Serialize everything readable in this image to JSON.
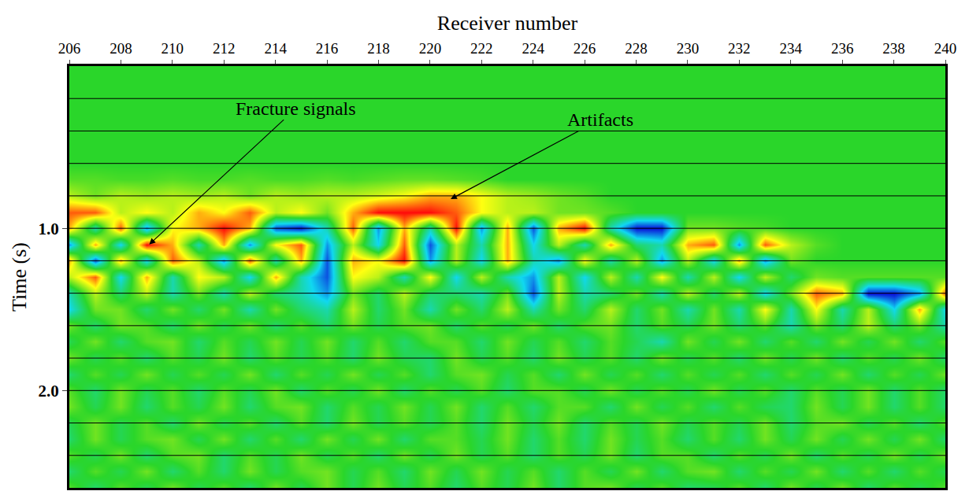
{
  "chart_data": {
    "type": "heatmap",
    "x_label": "Receiver number",
    "y_label": "Time (s)",
    "xlim": [
      206,
      240
    ],
    "xticks": [
      206,
      208,
      210,
      212,
      214,
      216,
      218,
      220,
      222,
      224,
      226,
      228,
      230,
      232,
      234,
      236,
      238,
      240
    ],
    "ylim": [
      0,
      2.6
    ],
    "yticks": [
      {
        "value": 1.0,
        "label": "1.0"
      },
      {
        "value": 2.0,
        "label": "2.0"
      }
    ],
    "grid": true,
    "y_grid": [
      0.2,
      0.4,
      0.6,
      0.8,
      1.0,
      1.2,
      1.4,
      1.6,
      1.8,
      2.0,
      2.2,
      2.4
    ],
    "zlim": [
      -3,
      3
    ],
    "annotations": [
      {
        "text": "Fracture signals",
        "x": 209.1,
        "y": 1.1,
        "ax": 214.8,
        "ay": 0.26
      },
      {
        "text": "Artifacts",
        "x": 220.8,
        "y": 0.82,
        "ax": 226.6,
        "ay": 0.33
      }
    ],
    "x": [
      206,
      207,
      208,
      209,
      210,
      211,
      212,
      213,
      214,
      215,
      216,
      217,
      218,
      219,
      220,
      221,
      222,
      223,
      224,
      225,
      226,
      227,
      228,
      229,
      230,
      231,
      232,
      233,
      234,
      235,
      236,
      237,
      238,
      239,
      240
    ],
    "y": [
      0,
      0.1,
      0.2,
      0.3,
      0.4,
      0.5,
      0.6,
      0.7,
      0.8,
      0.9,
      1.0,
      1.1,
      1.2,
      1.3,
      1.4,
      1.5,
      1.6,
      1.7,
      1.8,
      1.9,
      2.0,
      2.1,
      2.2,
      2.3,
      2.4,
      2.5,
      2.6
    ],
    "cells": [
      [
        0,
        0,
        0,
        0,
        0,
        0,
        0,
        0,
        0,
        0,
        0,
        0,
        0,
        0,
        0,
        0,
        0,
        0,
        0,
        0,
        0,
        0,
        0,
        0,
        0,
        0,
        0,
        0,
        0,
        0,
        0,
        0,
        0,
        0,
        0
      ],
      [
        0,
        0,
        0,
        0,
        0,
        0,
        0,
        0,
        0,
        0,
        0,
        0,
        0,
        0,
        0,
        0,
        0,
        0,
        0,
        0,
        0,
        0,
        0,
        0,
        0,
        0,
        0,
        0,
        0,
        0,
        0,
        0,
        0,
        0,
        0
      ],
      [
        0,
        0,
        0,
        0,
        0,
        0,
        0,
        0,
        0,
        0,
        0,
        0,
        0,
        0,
        0,
        0,
        0,
        0,
        0,
        0,
        0,
        0,
        0,
        0,
        0,
        0,
        0,
        0,
        0,
        0,
        0,
        0,
        0,
        0,
        0
      ],
      [
        0,
        0,
        0,
        0,
        0,
        0,
        0,
        0,
        0,
        0,
        0,
        0,
        0,
        0,
        0,
        0,
        0,
        0,
        0,
        0,
        0,
        0,
        0,
        0,
        0,
        0,
        0,
        0,
        0,
        0,
        0,
        0,
        0,
        0,
        0
      ],
      [
        0,
        0,
        0,
        0,
        0,
        0,
        0,
        0,
        0,
        0,
        0,
        0,
        0,
        0,
        0,
        0,
        0,
        0,
        0,
        0,
        0,
        0,
        0,
        0,
        0,
        0,
        0,
        0,
        0,
        0,
        0,
        0,
        0,
        0,
        0
      ],
      [
        0,
        0,
        0,
        0,
        0,
        0,
        0,
        0,
        0,
        0,
        0,
        0,
        0,
        0,
        0,
        0,
        0,
        0,
        0,
        0,
        0,
        0,
        0,
        0,
        0,
        0,
        0,
        0,
        0,
        0,
        0,
        0,
        0,
        0,
        0
      ],
      [
        0,
        0,
        0,
        0,
        0,
        0,
        0,
        0,
        0,
        0,
        0,
        0,
        0,
        0,
        0,
        0,
        0,
        0,
        0,
        0,
        0,
        0,
        0,
        0,
        0,
        0,
        0,
        0,
        0,
        0,
        0,
        0,
        0,
        0,
        0
      ],
      [
        0.3,
        0.3,
        0.2,
        0.2,
        0.3,
        0.2,
        0.2,
        0.3,
        0.2,
        0.2,
        0.3,
        0.2,
        0.3,
        0.4,
        0.4,
        0.3,
        0.2,
        0,
        0,
        0,
        0,
        0,
        0,
        0,
        0,
        0,
        0,
        0,
        0,
        0,
        0,
        0,
        0,
        0,
        0
      ],
      [
        1,
        0.5,
        1,
        0.8,
        1,
        0.8,
        1,
        0.5,
        1,
        0.8,
        1,
        1,
        1.2,
        1.5,
        2,
        2,
        1.5,
        1,
        0.8,
        0.5,
        0.3,
        0,
        0,
        0,
        0,
        0,
        0,
        0,
        0,
        0,
        0,
        0,
        0,
        0,
        0
      ],
      [
        2.5,
        2.5,
        1,
        1.5,
        1,
        2,
        1.5,
        2.5,
        1,
        1.5,
        0.5,
        2,
        3,
        3,
        3,
        2.5,
        1.5,
        1,
        1,
        0.5,
        0.5,
        0.3,
        0,
        0,
        0,
        0,
        0,
        0,
        0,
        0,
        0,
        0,
        0,
        0,
        0
      ],
      [
        2,
        -1,
        2.5,
        -2,
        1.5,
        2,
        3,
        2,
        -2.5,
        -3,
        -1,
        2.5,
        -2,
        2,
        -1,
        3,
        -2,
        2,
        -2.5,
        2,
        3,
        -1,
        -3,
        -3,
        0.5,
        0.5,
        0.3,
        0.2,
        0,
        0,
        0,
        0,
        0,
        0,
        0
      ],
      [
        -2,
        2,
        -1.5,
        3,
        2,
        -1,
        2,
        -2,
        1.5,
        2.5,
        -2,
        1,
        -1.5,
        2.5,
        -2.5,
        1,
        -1,
        2,
        -1.5,
        1,
        -1,
        2,
        -0.5,
        -1,
        2,
        2.5,
        -2,
        2.5,
        1,
        0.3,
        0,
        0,
        0,
        0,
        0
      ],
      [
        2,
        -2.5,
        2,
        -1.5,
        2.5,
        1,
        -2,
        2.5,
        -1,
        2,
        -2.5,
        2,
        1.5,
        3,
        -2,
        1,
        -1.5,
        2,
        -1,
        -2,
        1.5,
        -1,
        1,
        -2,
        1,
        -1.5,
        2,
        -2,
        0.5,
        0,
        0,
        0,
        0,
        0,
        0
      ],
      [
        1,
        2.5,
        -1.5,
        2,
        -1,
        1.5,
        1,
        -1.5,
        2,
        -1,
        -2.5,
        1.5,
        1,
        -1,
        1.5,
        -1.5,
        1,
        -1,
        -2,
        1,
        -1.5,
        1,
        -1,
        1.5,
        -1,
        1,
        -1.5,
        1,
        -0.5,
        0.5,
        0.3,
        0.3,
        0.3,
        0.3,
        0.3
      ],
      [
        -1,
        1,
        -0.5,
        1,
        -1,
        0.5,
        -1,
        1,
        -0.5,
        -1,
        -2,
        0.5,
        -0.5,
        1,
        -0.5,
        -0.5,
        -1,
        0.5,
        -2.5,
        1,
        -1,
        -0.5,
        0.5,
        -1,
        1,
        -0.5,
        1,
        -1.5,
        0.5,
        2.5,
        2,
        -3,
        -3,
        -2,
        2.5
      ],
      [
        -1.5,
        0.5,
        0.5,
        -0.5,
        0.5,
        -0.5,
        0.5,
        -1,
        0.5,
        -0.5,
        -1,
        1,
        -0.5,
        0.5,
        -1,
        0.5,
        -0.5,
        1,
        -1,
        0.5,
        -0.5,
        1,
        -0.5,
        0.5,
        -1,
        0.5,
        -1,
        1.5,
        -1,
        1.5,
        -1,
        1,
        -1.5,
        2,
        -1.5
      ],
      [
        0.5,
        -0.5,
        0.5,
        0.3,
        -0.5,
        0.5,
        -0.3,
        0.5,
        -0.5,
        0.3,
        -0.5,
        0.5,
        -0.3,
        0.3,
        0.5,
        -0.5,
        0.3,
        -0.3,
        0.5,
        -0.5,
        0.3,
        0.5,
        -0.5,
        0.3,
        -0.3,
        0.5,
        -0.5,
        0.3,
        -1,
        0.5,
        -0.5,
        1,
        -0.5,
        0.5,
        -1
      ],
      [
        -0.3,
        0.5,
        -0.5,
        0.3,
        0.5,
        -0.5,
        0.3,
        -0.3,
        0.5,
        -0.3,
        0.5,
        -0.5,
        0.3,
        -0.5,
        0.3,
        0.3,
        -0.5,
        0.5,
        -0.3,
        0.3,
        -0.5,
        0.3,
        -0.3,
        -1,
        0.5,
        -0.3,
        0.5,
        -0.5,
        0.3,
        -0.5,
        0.5,
        -0.3,
        0.5,
        -0.5,
        0.3
      ],
      [
        0.5,
        -0.3,
        0.3,
        -0.5,
        0.3,
        -0.3,
        0.5,
        -0.5,
        0.3,
        -0.3,
        0.3,
        -0.5,
        0.5,
        -0.3,
        -0.5,
        0.5,
        -0.3,
        0.3,
        -0.5,
        0.5,
        -0.3,
        0.3,
        -0.5,
        0.5,
        -0.3,
        0.3,
        -0.5,
        0.5,
        -0.3,
        0.5,
        -0.5,
        0.3,
        -0.3,
        0.5,
        -0.5
      ],
      [
        -0.5,
        0.3,
        -0.3,
        0.5,
        -0.3,
        0.3,
        -0.3,
        0.5,
        -0.5,
        0.3,
        -0.3,
        0.5,
        -0.3,
        0.3,
        -0.5,
        0.3,
        0.5,
        -0.3,
        0.3,
        -0.5,
        0.5,
        -0.3,
        0.3,
        -0.5,
        0.3,
        -0.3,
        0.3,
        -0.5,
        0.3,
        -0.3,
        0.5,
        -0.5,
        0.3,
        -0.3,
        0.5
      ],
      [
        0.3,
        -0.5,
        0.5,
        -0.3,
        0.3,
        -0.5,
        0.3,
        -0.3,
        0.5,
        -0.5,
        0.3,
        -0.3,
        0.5,
        -0.5,
        0.3,
        -0.3,
        0.3,
        -0.5,
        0.3,
        0.3,
        -0.3,
        0.5,
        -0.3,
        0.3,
        -0.3,
        0.5,
        -0.3,
        0.3,
        -0.5,
        0.3,
        -0.3,
        0.5,
        -0.5,
        0.3,
        -0.5
      ],
      [
        0.5,
        -0.3,
        0.5,
        -0.5,
        0.3,
        -0.3,
        0.5,
        -0.5,
        0.3,
        0.5,
        -0.5,
        0.3,
        -0.3,
        0.5,
        -0.3,
        0.5,
        -0.5,
        0.3,
        -0.5,
        0.3,
        0.3,
        -0.5,
        0.5,
        -0.3,
        0.3,
        -0.5,
        0.3,
        -0.3,
        -0.5,
        0.5,
        -0.3,
        0.5,
        -0.5,
        0.3,
        -0.5
      ],
      [
        -0.3,
        0.5,
        -0.3,
        0.3,
        -0.5,
        0.5,
        -0.3,
        0.3,
        -0.5,
        0.3,
        -0.5,
        0.5,
        -0.3,
        0.3,
        -0.3,
        0.3,
        -0.5,
        0.5,
        -0.3,
        0.5,
        -0.5,
        0.3,
        -0.3,
        0.5,
        -0.3,
        0.3,
        -0.3,
        0.5,
        -0.5,
        0.3,
        0.5,
        -0.3,
        0.3,
        -0.5,
        0.3
      ],
      [
        -0.5,
        0.5,
        -0.3,
        0.3,
        0.5,
        -0.3,
        0.5,
        -0.5,
        0.3,
        -0.5,
        0.5,
        -0.3,
        0.5,
        -0.5,
        0.3,
        0.3,
        -0.3,
        0.5,
        -0.5,
        0.3,
        -0.5,
        0.5,
        -0.3,
        0.3,
        -0.5,
        0.3,
        -0.5,
        0.5,
        -0.3,
        0.5,
        -0.3,
        0.5,
        -0.3,
        0.5,
        -0.5
      ],
      [
        0.3,
        -0.3,
        0.5,
        -0.5,
        0.3,
        0.5,
        -0.5,
        0.3,
        -0.3,
        0.5,
        -0.3,
        0.3,
        -0.5,
        0.5,
        -0.3,
        0.5,
        -0.3,
        0.3,
        -0.5,
        0.3,
        -0.3,
        0.5,
        -0.5,
        0.3,
        0.3,
        -0.5,
        0.3,
        -0.3,
        0.5,
        -0.5,
        0.3,
        -0.3,
        0.5,
        -0.3,
        0.5
      ],
      [
        -0.5,
        0.3,
        -0.3,
        0.5,
        -0.5,
        0.3,
        -0.5,
        0.5,
        -0.3,
        0.3,
        0.5,
        -0.3,
        0.3,
        -0.5,
        0.5,
        -0.3,
        0.5,
        -0.3,
        0.3,
        -0.5,
        0.3,
        -0.3,
        0.5,
        -0.5,
        0.3,
        0.5,
        -0.5,
        0.3,
        -0.3,
        0.5,
        -0.5,
        0.3,
        -0.5,
        0.3,
        -0.3
      ],
      [
        0.3,
        -0.5,
        0.3,
        -0.3,
        0.5,
        -0.3,
        0.3,
        -0.5,
        0.5,
        -0.3,
        0.5,
        -0.3,
        0.5,
        -0.3,
        0.3,
        -0.5,
        0.3,
        -0.3,
        0.5,
        -0.5,
        0.3,
        0.5,
        -0.3,
        0.3,
        -0.5,
        -0.3,
        0.3,
        -0.5,
        0.5,
        -0.3,
        0.5,
        -0.5,
        0.3,
        -0.3,
        0.3
      ]
    ]
  }
}
